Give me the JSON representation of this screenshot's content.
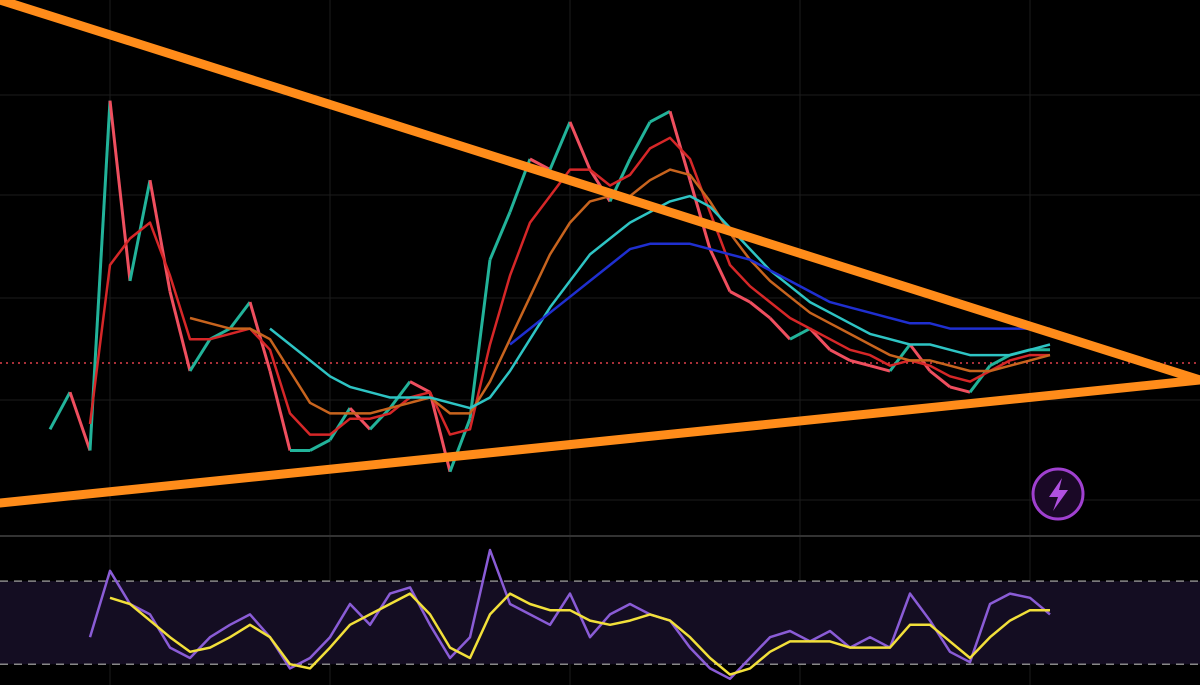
{
  "chart_data": [
    {
      "type": "line",
      "x": [
        0,
        1,
        2,
        3,
        4,
        5,
        6,
        7,
        8,
        9,
        10,
        11,
        12,
        13,
        14,
        15,
        16,
        17,
        18,
        19,
        20,
        21,
        22,
        23,
        24,
        25,
        26,
        27,
        28,
        29,
        30,
        31,
        32,
        33,
        34,
        35,
        36,
        37,
        38,
        39,
        40,
        41,
        42,
        43,
        44,
        45,
        46,
        47,
        48,
        49,
        50
      ],
      "xlim": [
        -2.5,
        57.5
      ],
      "ylim": [
        0,
        100
      ],
      "series": [
        {
          "color": "#ef4f5f",
          "up_color": "#22b39a",
          "values": [
            19,
            26,
            15,
            81,
            47,
            66,
            45,
            30,
            36,
            38,
            43,
            30,
            15,
            15,
            17,
            23,
            19,
            23,
            28,
            26,
            11,
            21,
            51,
            60,
            70,
            68,
            77,
            68,
            62,
            70,
            77,
            79,
            66,
            53,
            45,
            43,
            40,
            36,
            38,
            34,
            32,
            31,
            30,
            35,
            30,
            27,
            26,
            31,
            33,
            34,
            34
          ]
        },
        {
          "color": "#d62728",
          "values": [
            null,
            null,
            20,
            50,
            55,
            58,
            48,
            36,
            36,
            37,
            38,
            34,
            22,
            18,
            18,
            21,
            21,
            22,
            25,
            26,
            18,
            19,
            35,
            48,
            58,
            63,
            68,
            68,
            65,
            67,
            72,
            74,
            70,
            60,
            50,
            46,
            43,
            40,
            38,
            36,
            34,
            33,
            31,
            32,
            31,
            29,
            28,
            30,
            32,
            33,
            33
          ]
        },
        {
          "color": "#c8641e",
          "values": [
            null,
            null,
            null,
            null,
            null,
            null,
            null,
            40,
            39,
            38,
            38,
            36,
            30,
            24,
            22,
            22,
            22,
            23,
            24,
            25,
            22,
            22,
            28,
            36,
            44,
            52,
            58,
            62,
            63,
            63,
            66,
            68,
            67,
            62,
            56,
            51,
            47,
            44,
            41,
            39,
            37,
            35,
            33,
            32,
            32,
            31,
            30,
            30,
            31,
            32,
            33
          ]
        },
        {
          "color": "#2ec4c4",
          "values": [
            null,
            null,
            null,
            null,
            null,
            null,
            null,
            null,
            null,
            null,
            null,
            38,
            35,
            32,
            29,
            27,
            26,
            25,
            25,
            25,
            24,
            23,
            25,
            30,
            36,
            42,
            47,
            52,
            55,
            58,
            60,
            62,
            63,
            61,
            57,
            53,
            49,
            46,
            43,
            41,
            39,
            37,
            36,
            35,
            35,
            34,
            33,
            33,
            33,
            34,
            35
          ]
        },
        {
          "color": "#1f2fd0",
          "values": [
            null,
            null,
            null,
            null,
            null,
            null,
            null,
            null,
            null,
            null,
            null,
            null,
            null,
            null,
            null,
            null,
            null,
            null,
            null,
            null,
            null,
            null,
            null,
            35,
            38,
            41,
            44,
            47,
            50,
            53,
            54,
            54,
            54,
            53,
            52,
            51,
            49,
            47,
            45,
            43,
            42,
            41,
            40,
            39,
            39,
            38,
            38,
            38,
            38,
            38,
            38
          ]
        }
      ]
    },
    {
      "type": "line",
      "x": [
        0,
        1,
        2,
        3,
        4,
        5,
        6,
        7,
        8,
        9,
        10,
        11,
        12,
        13,
        14,
        15,
        16,
        17,
        18,
        19,
        20,
        21,
        22,
        23,
        24,
        25,
        26,
        27,
        28,
        29,
        30,
        31,
        32,
        33,
        34,
        35,
        36,
        37,
        38,
        39,
        40,
        41,
        42,
        43,
        44,
        45,
        46,
        47,
        48,
        49,
        50
      ],
      "xlim": [
        -2.5,
        57.5
      ],
      "ylim": [
        20,
        85
      ],
      "reference_lines": [
        70,
        30
      ],
      "series": [
        {
          "color": "#8a5cd6",
          "values": [
            null,
            null,
            43,
            75,
            59,
            54,
            38,
            33,
            43,
            49,
            54,
            43,
            28,
            33,
            43,
            59,
            49,
            64,
            67,
            49,
            33,
            43,
            85,
            59,
            54,
            49,
            64,
            43,
            54,
            59,
            54,
            51,
            38,
            28,
            23,
            33,
            43,
            46,
            41,
            46,
            38,
            43,
            38,
            64,
            51,
            36,
            31,
            59,
            64,
            62,
            54
          ]
        },
        {
          "color": "#f2e03a",
          "values": [
            null,
            null,
            null,
            62,
            59,
            51,
            43,
            36,
            38,
            43,
            49,
            43,
            30,
            28,
            38,
            49,
            54,
            59,
            64,
            54,
            38,
            33,
            54,
            64,
            59,
            56,
            56,
            51,
            49,
            51,
            54,
            51,
            43,
            33,
            25,
            28,
            36,
            41,
            41,
            41,
            38,
            38,
            38,
            49,
            49,
            41,
            33,
            43,
            51,
            56,
            56
          ]
        }
      ]
    }
  ]
}
